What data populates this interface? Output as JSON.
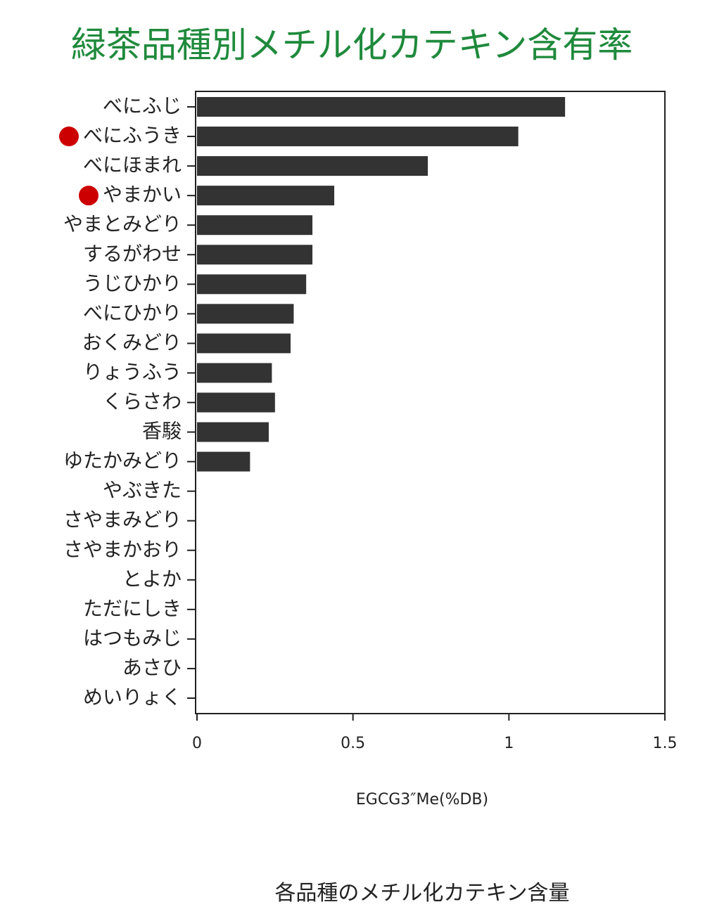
{
  "chart_data": {
    "type": "barh",
    "title": "緑茶品種別メチル化カテキン含有率",
    "xlabel": "EGCG3″Me(%DB)",
    "caption": "各品種のメチル化カテキン含量",
    "categories": [
      "べにふじ",
      "べにふうき",
      "べにほまれ",
      "やまかい",
      "やまとみどり",
      "するがわせ",
      "うじひかり",
      "べにひかり",
      "おくみどり",
      "りょうふう",
      "くらさわ",
      "香駿",
      "ゆたかみどり",
      "やぶきた",
      "さやまみどり",
      "さやまかおり",
      "とよか",
      "ただにしき",
      "はつもみじ",
      "あさひ",
      "めいりょく"
    ],
    "values": [
      1.18,
      1.03,
      0.74,
      0.44,
      0.37,
      0.37,
      0.35,
      0.31,
      0.3,
      0.24,
      0.25,
      0.23,
      0.17,
      0,
      0,
      0,
      0,
      0,
      0,
      0,
      0
    ],
    "color": "#333333",
    "xlim": [
      0,
      1.5
    ],
    "xticks": [
      0,
      0.5,
      1,
      1.5
    ],
    "highlight": [
      1,
      3
    ],
    "highlight_color": "#cc0000",
    "title_color": "#1f8a3c"
  }
}
